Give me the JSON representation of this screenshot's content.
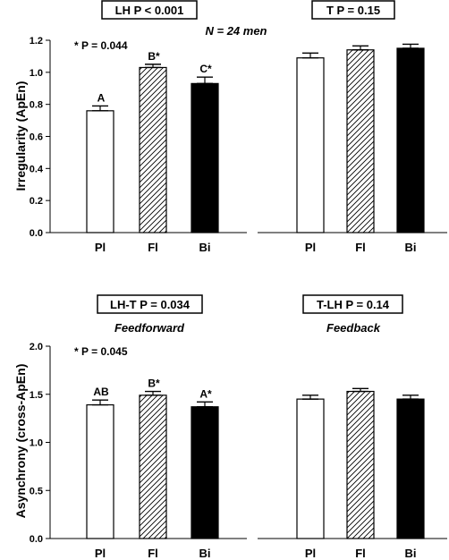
{
  "chart_data": [
    {
      "type": "bar",
      "panel": "top-left",
      "title": "LH P < 0.001",
      "ylabel": "Irregularity (ApEn)",
      "annotations": [
        "* P = 0.044"
      ],
      "center_label": "N = 24 men",
      "categories": [
        "Pl",
        "Fl",
        "Bi"
      ],
      "values": [
        0.76,
        1.03,
        0.93
      ],
      "errors": [
        0.03,
        0.02,
        0.04
      ],
      "bar_labels": [
        "A",
        "B*",
        "C*"
      ],
      "fills": [
        "white",
        "hatch",
        "black"
      ],
      "ylim": [
        0,
        1.2
      ],
      "yticks": [
        0,
        0.2,
        0.4,
        0.6,
        0.8,
        1.0,
        1.2
      ],
      "ytick_labels": [
        "0.0",
        "0.2",
        "0.4",
        "0.6",
        "0.8",
        "1.0",
        "1.2"
      ]
    },
    {
      "type": "bar",
      "panel": "top-right",
      "title": "T P = 0.15",
      "categories": [
        "Pl",
        "Fl",
        "Bi"
      ],
      "values": [
        1.09,
        1.14,
        1.15
      ],
      "errors": [
        0.03,
        0.025,
        0.025
      ],
      "fills": [
        "white",
        "hatch",
        "black"
      ],
      "ylim": [
        0,
        1.2
      ]
    },
    {
      "type": "bar",
      "panel": "bottom-left",
      "title": "LH-T P = 0.034",
      "subtitle": "Feedforward",
      "ylabel": "Asynchrony (cross-ApEn)",
      "annotations": [
        "* P = 0.045"
      ],
      "categories": [
        "Pl",
        "Fl",
        "Bi"
      ],
      "values": [
        1.39,
        1.49,
        1.37
      ],
      "errors": [
        0.05,
        0.04,
        0.05
      ],
      "bar_labels": [
        "AB",
        "B*",
        "A*"
      ],
      "fills": [
        "white",
        "hatch",
        "black"
      ],
      "ylim": [
        0,
        2.0
      ],
      "yticks": [
        0,
        0.5,
        1.0,
        1.5,
        2.0
      ],
      "ytick_labels": [
        "0.0",
        "0.5",
        "1.0",
        "1.5",
        "2.0"
      ]
    },
    {
      "type": "bar",
      "panel": "bottom-right",
      "title": "T-LH P = 0.14",
      "subtitle": "Feedback",
      "categories": [
        "Pl",
        "Fl",
        "Bi"
      ],
      "values": [
        1.45,
        1.53,
        1.45
      ],
      "errors": [
        0.04,
        0.03,
        0.04
      ],
      "fills": [
        "white",
        "hatch",
        "black"
      ],
      "ylim": [
        0,
        2.0
      ]
    }
  ]
}
